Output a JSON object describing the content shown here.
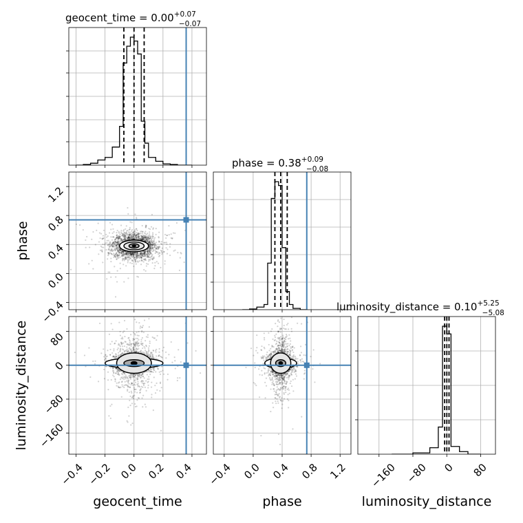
{
  "colors": {
    "truth": "#4682b4",
    "hist": "#000000",
    "grid": "#b0b0b0"
  },
  "chart_data": [
    {
      "type": "histogram",
      "panel": "geocent_time",
      "title": {
        "base": "geocent_time = 0.00",
        "sup": "+0.07",
        "sub": "−0.07"
      },
      "xlim": [
        -0.45,
        0.5
      ],
      "ylim": [
        0,
        1.0
      ],
      "bin_edges": [
        -0.4,
        -0.35,
        -0.3,
        -0.25,
        -0.2,
        -0.15,
        -0.1,
        -0.075,
        -0.05,
        -0.025,
        0.0,
        0.025,
        0.05,
        0.075,
        0.1,
        0.15,
        0.2,
        0.25,
        0.3,
        0.35,
        0.4
      ],
      "counts": [
        0.0,
        0.005,
        0.015,
        0.04,
        0.06,
        0.14,
        0.3,
        0.79,
        0.92,
        0.99,
        0.96,
        0.86,
        0.34,
        0.17,
        0.06,
        0.03,
        0.01,
        0.005,
        0.0,
        0.0
      ],
      "quantiles": [
        -0.07,
        0.0,
        0.07
      ],
      "truth": 0.36
    },
    {
      "type": "scatter",
      "panel": "phase vs geocent_time",
      "xlim": [
        -0.45,
        0.5
      ],
      "ylim": [
        -0.5,
        1.4
      ],
      "center": [
        0.0,
        0.38
      ],
      "spread": [
        0.07,
        0.085
      ],
      "points": 2200,
      "contour_levels": [
        [
          0.1,
          0.08
        ],
        [
          0.07,
          0.055
        ],
        [
          0.035,
          0.03
        ],
        [
          0.012,
          0.012
        ]
      ],
      "truth": [
        0.36,
        0.74
      ]
    },
    {
      "type": "histogram",
      "panel": "phase",
      "title": {
        "base": "phase = 0.38",
        "sup": "+0.09",
        "sub": "−0.08"
      },
      "xlim": [
        -0.55,
        1.35
      ],
      "ylim": [
        0,
        1.0
      ],
      "bin_edges": [
        -0.15,
        -0.05,
        0.05,
        0.15,
        0.2,
        0.25,
        0.3,
        0.35,
        0.4,
        0.45,
        0.5,
        0.55,
        0.65,
        0.75
      ],
      "counts": [
        0.0,
        0.005,
        0.02,
        0.04,
        0.36,
        0.86,
        0.99,
        0.96,
        0.48,
        0.14,
        0.04,
        0.01,
        0.0
      ],
      "quantiles": [
        0.3,
        0.38,
        0.47
      ],
      "truth": 0.74
    },
    {
      "type": "scatter",
      "panel": "luminosity_distance vs geocent_time",
      "xlim": [
        -0.45,
        0.5
      ],
      "ylim": [
        -210,
        115
      ],
      "center": [
        0.0,
        5.0
      ],
      "spread": [
        0.07,
        12.0
      ],
      "points": 2200,
      "contour_levels": [
        [
          0.2,
          12
        ],
        [
          0.12,
          24
        ],
        [
          0.07,
          8
        ],
        [
          0.02,
          3.5
        ]
      ],
      "truth": [
        0.36,
        0.0
      ]
    },
    {
      "type": "scatter",
      "panel": "luminosity_distance vs phase",
      "xlim": [
        -0.55,
        1.35
      ],
      "ylim": [
        -210,
        115
      ],
      "center": [
        0.38,
        5.0
      ],
      "spread": [
        0.085,
        12.0
      ],
      "points": 2200,
      "contour_levels": [
        [
          0.22,
          12
        ],
        [
          0.14,
          24
        ],
        [
          0.07,
          8
        ],
        [
          0.025,
          3.5
        ]
      ],
      "truth": [
        0.74,
        0.0
      ]
    },
    {
      "type": "histogram",
      "panel": "luminosity_distance",
      "title": {
        "base": "luminosity_distance = 0.10",
        "sup": "+5.25",
        "sub": "−5.08"
      },
      "xlim": [
        -210,
        115
      ],
      "ylim": [
        0,
        1.0
      ],
      "bin_edges": [
        -130,
        -80,
        -40,
        -20,
        -10,
        0,
        10,
        30,
        50,
        80
      ],
      "counts": [
        0.0,
        0.01,
        0.05,
        0.21,
        0.99,
        0.93,
        0.06,
        0.02,
        0.0
      ],
      "quantiles": [
        -5.0,
        0.1,
        5.3
      ],
      "truth": null
    }
  ],
  "axes": {
    "x_labels": [
      "geocent_time",
      "phase",
      "luminosity_distance"
    ],
    "y_labels": [
      "phase",
      "luminosity_distance"
    ],
    "x_ticks": {
      "geocent_time": [
        "−0.4",
        "−0.2",
        "0.0",
        "0.2",
        "0.4"
      ],
      "phase": [
        "−0.4",
        "0.0",
        "0.4",
        "0.8",
        "1.2"
      ],
      "luminosity_distance": [
        "−160",
        "−80",
        "0",
        "80"
      ]
    },
    "y_ticks": {
      "phase": [
        "−0.4",
        "0.0",
        "0.4",
        "0.8",
        "1.2"
      ],
      "luminosity_distance": [
        "−160",
        "−80",
        "0",
        "80"
      ]
    }
  }
}
